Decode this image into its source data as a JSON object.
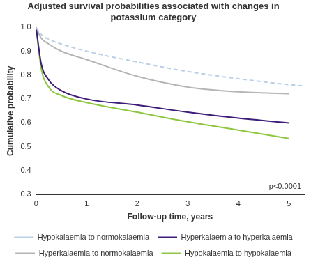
{
  "chart_data": {
    "type": "line",
    "title": "Adjusted survival probabilities associated with changes in potassium category",
    "x_label": "Follow-up time, years",
    "y_label": "Cumulative probability",
    "annotation": "p<0.0001",
    "x": [
      0,
      0.1,
      0.25,
      0.5,
      1,
      2,
      3,
      4,
      5,
      5.3
    ],
    "series": [
      {
        "name": "Hypokalaemia to normokalaemia",
        "color": "#b9d0e8",
        "line_style": "dashed",
        "values": [
          1.0,
          0.97,
          0.95,
          0.93,
          0.9,
          0.855,
          0.815,
          0.785,
          0.76,
          0.755
        ]
      },
      {
        "name": "Hyperkalaemia to hyperkalaemia",
        "color": "#3d1c7a",
        "line_style": "solid",
        "values": [
          1.0,
          0.85,
          0.78,
          0.735,
          0.7,
          0.675,
          0.645,
          0.62,
          0.6,
          null
        ]
      },
      {
        "name": "Hyperkalaemia to normokalaemia",
        "color": "#b5b5b5",
        "line_style": "solid",
        "values": [
          1.0,
          0.955,
          0.93,
          0.9,
          0.865,
          0.795,
          0.75,
          0.73,
          0.722,
          null
        ]
      },
      {
        "name": "Hypokalaemia to hypokalaemia",
        "color": "#8dc63f",
        "line_style": "solid",
        "values": [
          1.0,
          0.83,
          0.75,
          0.715,
          0.685,
          0.645,
          0.605,
          0.57,
          0.535,
          null
        ]
      }
    ],
    "xlim": [
      0,
      5.3
    ],
    "xticks": [
      0,
      1,
      2,
      3,
      4,
      5
    ],
    "ylim": [
      0.3,
      1.0
    ],
    "yticks": [
      0.3,
      0.4,
      0.5,
      0.6,
      0.7,
      0.8,
      0.9,
      {
        "value": 1.0,
        "label": "1.0"
      }
    ],
    "grid": false,
    "legend": "bottom"
  }
}
